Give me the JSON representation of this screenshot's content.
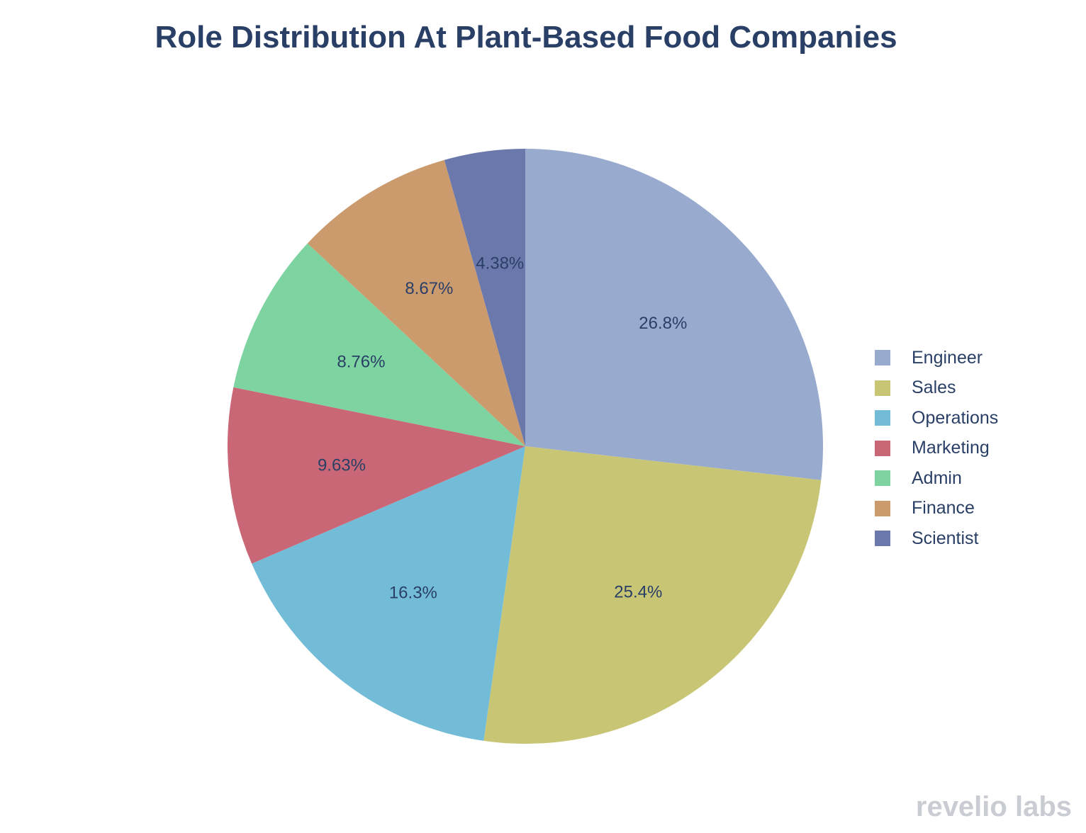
{
  "chart_data": {
    "type": "pie",
    "title": "Role Distribution At Plant-Based Food Companies",
    "labels": [
      "Engineer",
      "Sales",
      "Operations",
      "Marketing",
      "Admin",
      "Finance",
      "Scientist"
    ],
    "values": [
      26.8,
      25.4,
      16.3,
      9.63,
      8.76,
      8.67,
      4.38
    ],
    "value_labels": [
      "26.8%",
      "25.4%",
      "16.3%",
      "9.63%",
      "8.76%",
      "8.67%",
      "4.38%"
    ],
    "colors": [
      "#98abcf",
      "#c8c575",
      "#73bcd8",
      "#c96776",
      "#7ed4a0",
      "#cb9b6e",
      "#6b78ab"
    ],
    "legend_position": "right",
    "start_angle": "12 o'clock",
    "direction": "clockwise"
  },
  "brand": {
    "text": "revelio labs"
  }
}
